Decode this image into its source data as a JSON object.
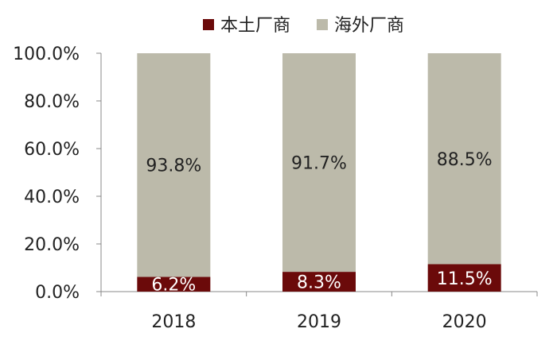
{
  "chart_data": {
    "type": "bar",
    "stacked": true,
    "categories": [
      "2018",
      "2019",
      "2020"
    ],
    "series": [
      {
        "name": "本土厂商",
        "values": [
          6.2,
          8.3,
          11.5
        ],
        "labels": [
          "6.2%",
          "8.3%",
          "11.5%"
        ],
        "color": "#6b0a0a",
        "label_color": "#ffffff"
      },
      {
        "name": "海外厂商",
        "values": [
          93.8,
          91.7,
          88.5
        ],
        "labels": [
          "93.8%",
          "91.7%",
          "88.5%"
        ],
        "color": "#bcbaaa",
        "label_color": "#222222"
      }
    ],
    "ylim": [
      0,
      100
    ],
    "yticks": [
      "0.0%",
      "20.0%",
      "40.0%",
      "60.0%",
      "80.0%",
      "100.0%"
    ],
    "legend_position": "top-center",
    "grid": false
  }
}
